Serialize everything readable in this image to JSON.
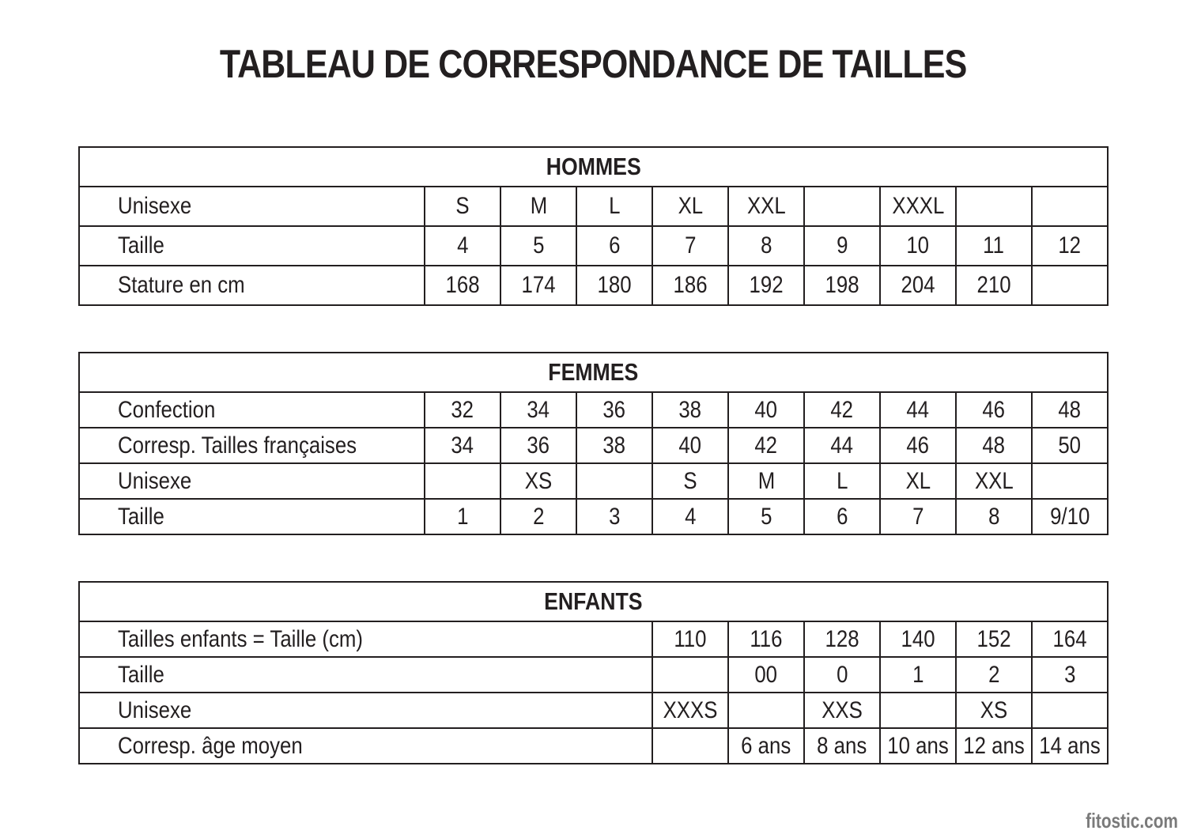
{
  "title": "TABLEAU DE CORRESPONDANCE DE TAILLES",
  "watermark": "fitostic.com",
  "tables": [
    {
      "id": "hommes",
      "header": "HOMMES",
      "label_span": 1,
      "rows": [
        {
          "label": "Unisexe",
          "cells": [
            "S",
            "M",
            "L",
            "XL",
            "XXL",
            "",
            "XXXL",
            "",
            ""
          ]
        },
        {
          "label": "Taille",
          "cells": [
            "4",
            "5",
            "6",
            "7",
            "8",
            "9",
            "10",
            "11",
            "12"
          ]
        },
        {
          "label": "Stature en cm",
          "cells": [
            "168",
            "174",
            "180",
            "186",
            "192",
            "198",
            "204",
            "210",
            ""
          ]
        }
      ]
    },
    {
      "id": "femmes",
      "header": "FEMMES",
      "label_span": 1,
      "rows": [
        {
          "label": "Confection",
          "cells": [
            "32",
            "34",
            "36",
            "38",
            "40",
            "42",
            "44",
            "46",
            "48"
          ]
        },
        {
          "label": "Corresp. Tailles françaises",
          "cells": [
            "34",
            "36",
            "38",
            "40",
            "42",
            "44",
            "46",
            "48",
            "50"
          ]
        },
        {
          "label": "Unisexe",
          "cells": [
            "",
            "XS",
            "",
            "S",
            "M",
            "L",
            "XL",
            "XXL",
            ""
          ]
        },
        {
          "label": "Taille",
          "cells": [
            "1",
            "2",
            "3",
            "4",
            "5",
            "6",
            "7",
            "8",
            "9/10"
          ]
        }
      ]
    },
    {
      "id": "enfants",
      "header": "ENFANTS",
      "label_span": 4,
      "rows": [
        {
          "label": "Tailles enfants = Taille (cm)",
          "cells": [
            "110",
            "116",
            "128",
            "140",
            "152",
            "164"
          ]
        },
        {
          "label": "Taille",
          "cells": [
            "",
            "00",
            "0",
            "1",
            "2",
            "3"
          ]
        },
        {
          "label": "Unisexe",
          "cells": [
            "XXXS",
            "",
            "XXS",
            "",
            "XS",
            ""
          ]
        },
        {
          "label": "Corresp. âge moyen",
          "cells": [
            "",
            "6 ans",
            "8 ans",
            "10 ans",
            "12 ans",
            "14 ans"
          ]
        }
      ]
    }
  ]
}
